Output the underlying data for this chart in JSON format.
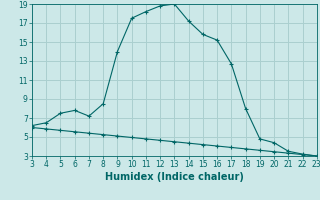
{
  "xlabel": "Humidex (Indice chaleur)",
  "line1_x": [
    3,
    4,
    5,
    6,
    7,
    8,
    9,
    10,
    11,
    12,
    13,
    14,
    15,
    16,
    17,
    18,
    19,
    20,
    21,
    22,
    23
  ],
  "line1_y": [
    6.2,
    6.5,
    7.5,
    7.8,
    7.2,
    8.5,
    14.0,
    17.5,
    18.2,
    18.8,
    19.0,
    17.2,
    15.8,
    15.2,
    12.7,
    8.0,
    4.8,
    4.4,
    3.5,
    3.2,
    3.0
  ],
  "line2_x": [
    3,
    4,
    5,
    6,
    7,
    8,
    9,
    10,
    11,
    12,
    13,
    14,
    15,
    16,
    17,
    18,
    19,
    20,
    21,
    22,
    23
  ],
  "line2_y": [
    6.0,
    5.85,
    5.7,
    5.55,
    5.4,
    5.25,
    5.1,
    4.95,
    4.8,
    4.65,
    4.5,
    4.35,
    4.2,
    4.05,
    3.9,
    3.75,
    3.6,
    3.45,
    3.3,
    3.15,
    3.0
  ],
  "line_color": "#006666",
  "bg_color": "#cce8e8",
  "grid_color": "#aacfcf",
  "xlim": [
    3,
    23
  ],
  "ylim": [
    3,
    19
  ],
  "xticks": [
    3,
    4,
    5,
    6,
    7,
    8,
    9,
    10,
    11,
    12,
    13,
    14,
    15,
    16,
    17,
    18,
    19,
    20,
    21,
    22,
    23
  ],
  "yticks": [
    3,
    5,
    7,
    9,
    11,
    13,
    15,
    17,
    19
  ],
  "tick_fontsize": 6.0,
  "xlabel_fontsize": 7.0
}
